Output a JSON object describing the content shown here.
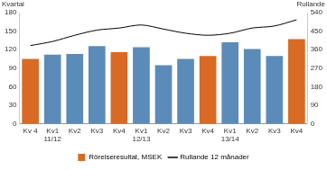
{
  "chart_data": {
    "type": "bar",
    "y_label": "Kvartal",
    "y2_label": "Rullande",
    "categories": [
      "Kv 4",
      [
        "Kv1",
        "11/12"
      ],
      "Kv2",
      "Kv3",
      "Kv4",
      [
        "Kv1",
        "12/13"
      ],
      "Kv2",
      "Kv3",
      "Kv4",
      [
        "Kv1",
        "13/14"
      ],
      "Kv2",
      "Kv3",
      "Kv4"
    ],
    "series": [
      {
        "name": "Rörelseresultat, MSEK",
        "type": "bar",
        "color": "#d86a24",
        "colors": [
          "#d86a24",
          "#5b8bb8",
          "#5b8bb8",
          "#5b8bb8",
          "#d86a24",
          "#5b8bb8",
          "#5b8bb8",
          "#5b8bb8",
          "#d86a24",
          "#5b8bb8",
          "#5b8bb8",
          "#5b8bb8",
          "#d86a24"
        ],
        "values": [
          105,
          112,
          113,
          126,
          116,
          124,
          95,
          105,
          110,
          132,
          121,
          110,
          137
        ]
      },
      {
        "name": "Rullande 12 månader",
        "type": "line",
        "color": "#000000",
        "axis": "y2",
        "values": [
          380,
          400,
          430,
          455,
          465,
          480,
          460,
          440,
          430,
          440,
          465,
          475,
          505
        ]
      }
    ],
    "ylim": [
      0,
      180
    ],
    "yticks": [
      0,
      30,
      60,
      90,
      120,
      150,
      180
    ],
    "y2lim": [
      0,
      540
    ],
    "y2ticks": [
      0,
      90,
      180,
      270,
      360,
      450,
      540
    ],
    "grid": false,
    "legend": "bottom"
  }
}
